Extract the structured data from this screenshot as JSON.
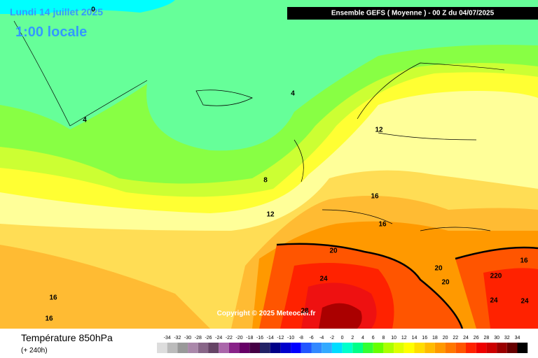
{
  "header": {
    "date": "Lundi 14 juillet 2025",
    "time": "1:00 locale",
    "run": "Ensemble GEFS  ( Moyenne )  - 00 Z du 04/07/2025"
  },
  "map": {
    "contour_labels": [
      0,
      4,
      4,
      8,
      12,
      12,
      16,
      16,
      20,
      20,
      20,
      24,
      24,
      24,
      28,
      220,
      16,
      16,
      16
    ],
    "copyright": "Copyright © 2025 Meteociel.fr"
  },
  "legend": {
    "title": "Température 850hPa",
    "subtitle": "(+ 240h)",
    "labels": [
      -34,
      -32,
      -30,
      -28,
      -26,
      -24,
      -22,
      -20,
      -18,
      -16,
      -14,
      -12,
      -10,
      -8,
      -6,
      -4,
      -2,
      0,
      2,
      4,
      6,
      8,
      10,
      12,
      14,
      16,
      18,
      20,
      22,
      24,
      26,
      28,
      30,
      32,
      34
    ],
    "colors": [
      "#dddddd",
      "#bbbbbb",
      "#999999",
      "#aa88aa",
      "#886688",
      "#664466",
      "#aa66aa",
      "#882288",
      "#660066",
      "#440044",
      "#222266",
      "#000088",
      "#0000cc",
      "#0000ff",
      "#2255ff",
      "#3388ff",
      "#33aaff",
      "#00ddff",
      "#00ffcc",
      "#00ff88",
      "#33ff33",
      "#66ff00",
      "#aaff00",
      "#ddff00",
      "#ffff00",
      "#ffdd00",
      "#ffbb00",
      "#ff9900",
      "#ff7700",
      "#ff5500",
      "#ff2200",
      "#ee0000",
      "#cc0000",
      "#990000",
      "#660000",
      "#000000"
    ]
  }
}
